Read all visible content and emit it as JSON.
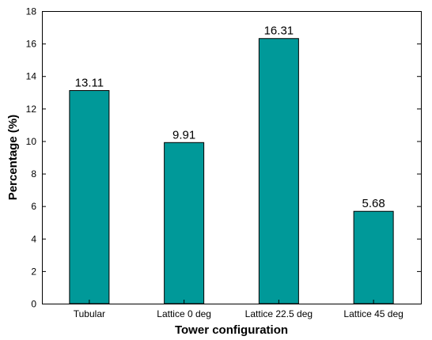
{
  "chart_data": {
    "type": "bar",
    "title": "",
    "xlabel": "Tower configuration",
    "ylabel": "Percentage (%)",
    "categories": [
      "Tubular",
      "Lattice 0 deg",
      "Lattice 22.5 deg",
      "Lattice 45 deg"
    ],
    "values": [
      13.11,
      9.91,
      16.31,
      5.68
    ],
    "data_labels": [
      "13.11",
      "9.91",
      "16.31",
      "5.68"
    ],
    "ylim": [
      0,
      18
    ],
    "yticks": [
      0,
      2,
      4,
      6,
      8,
      10,
      12,
      14,
      16,
      18
    ],
    "grid": false,
    "bar_color": "#009999",
    "bar_edge_color": "#000000"
  }
}
